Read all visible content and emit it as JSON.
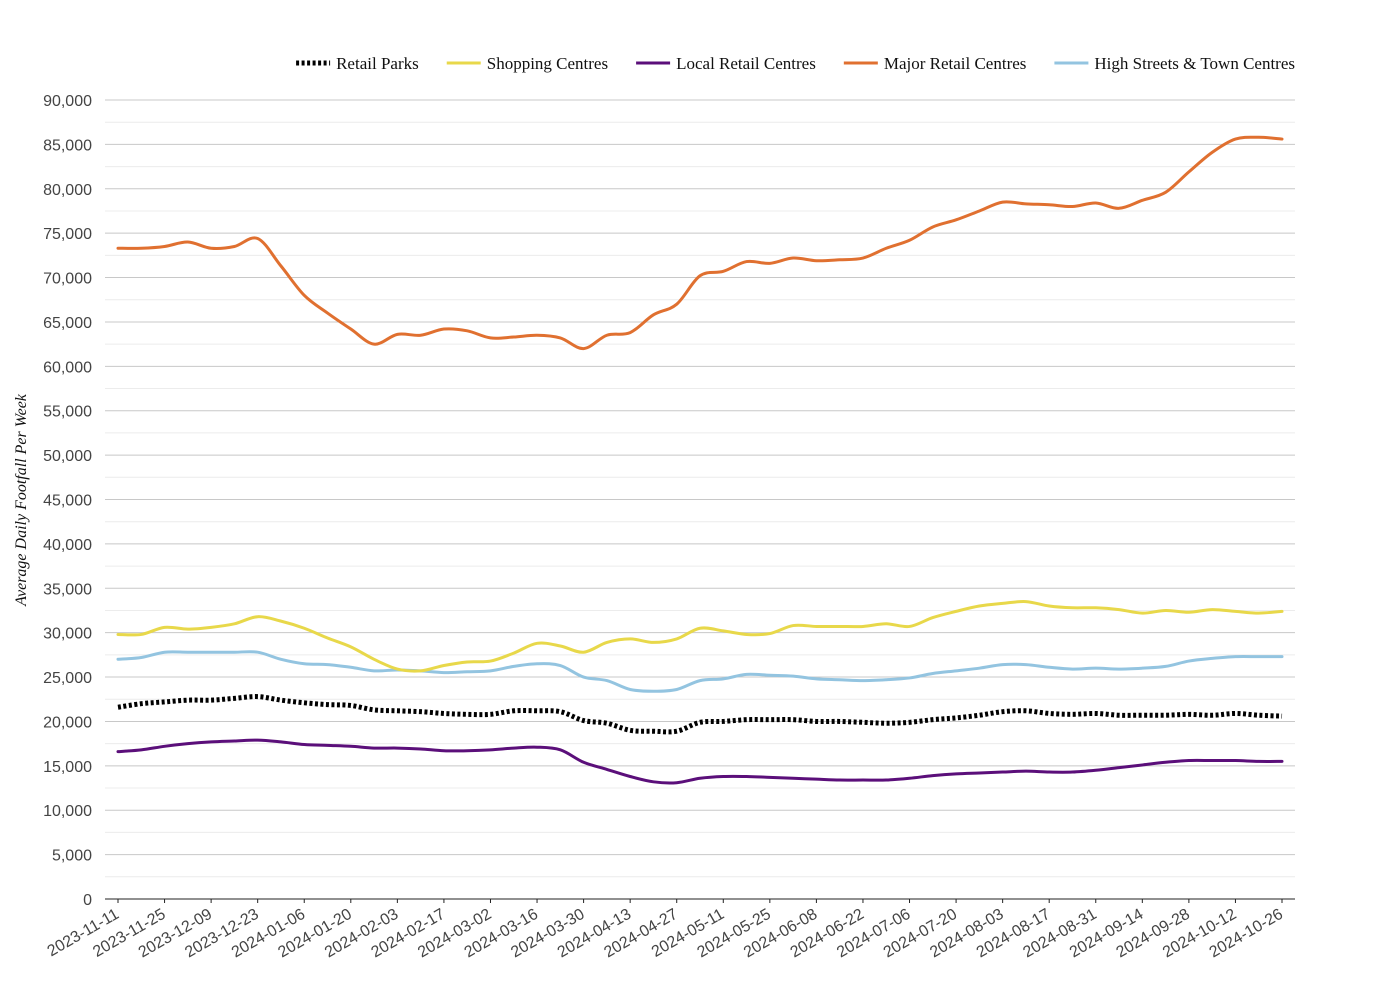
{
  "chart_data": {
    "type": "line",
    "title": "",
    "xlabel": "",
    "ylabel": "Average Daily Footfall Per Week",
    "ylim": [
      0,
      90000
    ],
    "y_ticks": [
      0,
      5000,
      10000,
      15000,
      20000,
      25000,
      30000,
      35000,
      40000,
      45000,
      50000,
      55000,
      60000,
      65000,
      70000,
      75000,
      80000,
      85000,
      90000
    ],
    "y_tick_labels": [
      "0",
      "5,000",
      "10,000",
      "15,000",
      "20,000",
      "25,000",
      "30,000",
      "35,000",
      "40,000",
      "45,000",
      "50,000",
      "55,000",
      "60,000",
      "65,000",
      "70,000",
      "75,000",
      "80,000",
      "85,000",
      "90,000"
    ],
    "x_tick_labels": [
      "2023-11-11",
      "2023-11-25",
      "2023-12-09",
      "2023-12-23",
      "2024-01-06",
      "2024-01-20",
      "2024-02-03",
      "2024-02-17",
      "2024-03-02",
      "2024-03-16",
      "2024-03-30",
      "2024-04-13",
      "2024-04-27",
      "2024-05-11",
      "2024-05-25",
      "2024-06-08",
      "2024-06-22",
      "2024-07-06",
      "2024-07-20",
      "2024-08-03",
      "2024-08-17",
      "2024-08-31",
      "2024-09-14",
      "2024-09-28",
      "2024-10-12",
      "2024-10-26"
    ],
    "grid": true,
    "legend_position": "top-right",
    "x": [
      "2023-11-11",
      "2023-11-18",
      "2023-11-25",
      "2023-12-02",
      "2023-12-09",
      "2023-12-16",
      "2023-12-23",
      "2023-12-30",
      "2024-01-06",
      "2024-01-13",
      "2024-01-20",
      "2024-01-27",
      "2024-02-03",
      "2024-02-10",
      "2024-02-17",
      "2024-02-24",
      "2024-03-02",
      "2024-03-09",
      "2024-03-16",
      "2024-03-23",
      "2024-03-30",
      "2024-04-06",
      "2024-04-13",
      "2024-04-20",
      "2024-04-27",
      "2024-05-04",
      "2024-05-11",
      "2024-05-18",
      "2024-05-25",
      "2024-06-01",
      "2024-06-08",
      "2024-06-15",
      "2024-06-22",
      "2024-06-29",
      "2024-07-06",
      "2024-07-13",
      "2024-07-20",
      "2024-07-27",
      "2024-08-03",
      "2024-08-10",
      "2024-08-17",
      "2024-08-24",
      "2024-08-31",
      "2024-09-07",
      "2024-09-14",
      "2024-09-21",
      "2024-09-28",
      "2024-10-05",
      "2024-10-12",
      "2024-10-19",
      "2024-10-26"
    ],
    "series": [
      {
        "name": "Retail Parks",
        "color": "#000000",
        "style": "dotted",
        "values": [
          21600,
          22000,
          22200,
          22400,
          22400,
          22600,
          22800,
          22400,
          22100,
          21900,
          21800,
          21300,
          21200,
          21100,
          20900,
          20800,
          20800,
          21200,
          21200,
          21100,
          20100,
          19800,
          19000,
          18900,
          18900,
          19900,
          20000,
          20200,
          20200,
          20200,
          20000,
          20000,
          19900,
          19800,
          19900,
          20200,
          20400,
          20700,
          21100,
          21200,
          20900,
          20800,
          20900,
          20700,
          20700,
          20700,
          20800,
          20700,
          20900,
          20700,
          20600
        ]
      },
      {
        "name": "Shopping Centres",
        "color": "#E8D84A",
        "style": "solid",
        "values": [
          29800,
          29800,
          30600,
          30400,
          30600,
          31000,
          31800,
          31300,
          30500,
          29400,
          28400,
          27000,
          25900,
          25700,
          26300,
          26700,
          26800,
          27700,
          28800,
          28500,
          27800,
          28900,
          29300,
          28900,
          29300,
          30500,
          30200,
          29800,
          29900,
          30800,
          30700,
          30700,
          30700,
          31000,
          30700,
          31700,
          32400,
          33000,
          33300,
          33500,
          33000,
          32800,
          32800,
          32600,
          32200,
          32500,
          32300,
          32600,
          32400,
          32200,
          32400
        ]
      },
      {
        "name": "Local Retail Centres",
        "color": "#5B0F7A",
        "style": "solid",
        "values": [
          16600,
          16800,
          17200,
          17500,
          17700,
          17800,
          17900,
          17700,
          17400,
          17300,
          17200,
          17000,
          17000,
          16900,
          16700,
          16700,
          16800,
          17000,
          17100,
          16800,
          15400,
          14600,
          13800,
          13200,
          13100,
          13600,
          13800,
          13800,
          13700,
          13600,
          13500,
          13400,
          13400,
          13400,
          13600,
          13900,
          14100,
          14200,
          14300,
          14400,
          14300,
          14300,
          14500,
          14800,
          15100,
          15400,
          15600,
          15600,
          15600,
          15500,
          15500
        ]
      },
      {
        "name": "Major Retail Centres",
        "color": "#E07030",
        "style": "solid",
        "values": [
          73300,
          73300,
          73500,
          74000,
          73300,
          73500,
          74400,
          71300,
          68000,
          66000,
          64200,
          62500,
          63600,
          63500,
          64200,
          64000,
          63200,
          63300,
          63500,
          63200,
          62000,
          63500,
          63800,
          65800,
          67000,
          70200,
          70700,
          71800,
          71600,
          72200,
          71900,
          72000,
          72200,
          73300,
          74200,
          75700,
          76500,
          77500,
          78500,
          78300,
          78200,
          78000,
          78400,
          77800,
          78700,
          79600,
          81900,
          84100,
          85600,
          85800,
          85600
        ]
      },
      {
        "name": "High Streets & Town Centres",
        "color": "#93C4E0",
        "style": "solid",
        "values": [
          27000,
          27200,
          27800,
          27800,
          27800,
          27800,
          27800,
          27000,
          26500,
          26400,
          26100,
          25700,
          25800,
          25700,
          25500,
          25600,
          25700,
          26200,
          26500,
          26300,
          25000,
          24600,
          23600,
          23400,
          23600,
          24600,
          24800,
          25300,
          25200,
          25100,
          24800,
          24700,
          24600,
          24700,
          24900,
          25400,
          25700,
          26000,
          26400,
          26400,
          26100,
          25900,
          26000,
          25900,
          26000,
          26200,
          26800,
          27100,
          27300,
          27300,
          27300
        ]
      }
    ]
  }
}
